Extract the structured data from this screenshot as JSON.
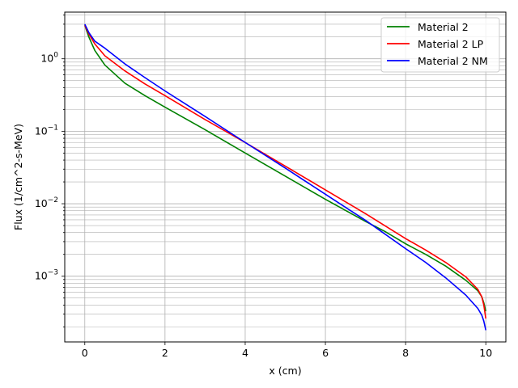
{
  "chart_data": {
    "type": "line",
    "title": "",
    "xlabel": "x (cm)",
    "ylabel": "Flux (1/cm^2-s-MeV)",
    "xscale": "linear",
    "yscale": "log",
    "xlim": [
      -0.5,
      10.5
    ],
    "ylim": [
      0.000124,
      4.4
    ],
    "xticks": [
      0,
      2,
      4,
      6,
      8,
      10
    ],
    "xtick_labels": [
      "0",
      "2",
      "4",
      "6",
      "8",
      "10"
    ],
    "yticks": [
      0.001,
      0.01,
      0.1,
      1
    ],
    "ytick_labels": [
      "10^-3",
      "10^-2",
      "10^-1",
      "10^0"
    ],
    "grid": true,
    "legend_position": "top-right",
    "series": [
      {
        "name": "Material 2",
        "color": "#008000",
        "x": [
          0,
          0.1,
          0.25,
          0.5,
          1,
          1.5,
          2,
          3,
          4,
          5,
          6,
          7,
          7.5,
          8,
          8.5,
          9,
          9.5,
          9.8,
          9.9,
          9.95,
          10
        ],
        "y": [
          2.9,
          2.0,
          1.3,
          0.82,
          0.46,
          0.31,
          0.215,
          0.105,
          0.05,
          0.024,
          0.0115,
          0.0057,
          0.0041,
          0.0028,
          0.002,
          0.00138,
          0.00088,
          0.00063,
          0.00052,
          0.00043,
          0.00033
        ]
      },
      {
        "name": "Material 2 LP",
        "color": "#ff0000",
        "x": [
          0,
          0.1,
          0.25,
          0.5,
          1,
          1.5,
          2,
          3,
          4,
          5,
          6,
          7,
          8,
          8.5,
          9,
          9.5,
          9.8,
          9.9,
          9.95,
          10
        ],
        "y": [
          2.9,
          2.2,
          1.6,
          1.1,
          0.68,
          0.45,
          0.31,
          0.145,
          0.07,
          0.033,
          0.0155,
          0.0073,
          0.0033,
          0.0023,
          0.00155,
          0.00098,
          0.00066,
          0.00052,
          0.0004,
          0.00026
        ]
      },
      {
        "name": "Material 2 NM",
        "color": "#0000ff",
        "x": [
          0,
          0.1,
          0.25,
          0.5,
          1,
          1.5,
          2,
          3,
          4,
          5,
          6,
          7,
          8,
          8.5,
          9,
          9.5,
          9.8,
          9.9,
          9.95,
          10
        ],
        "y": [
          3.0,
          2.3,
          1.75,
          1.4,
          0.85,
          0.55,
          0.36,
          0.16,
          0.07,
          0.031,
          0.0135,
          0.0059,
          0.0024,
          0.00155,
          0.00095,
          0.00055,
          0.00036,
          0.00029,
          0.00024,
          0.00018
        ]
      }
    ]
  }
}
